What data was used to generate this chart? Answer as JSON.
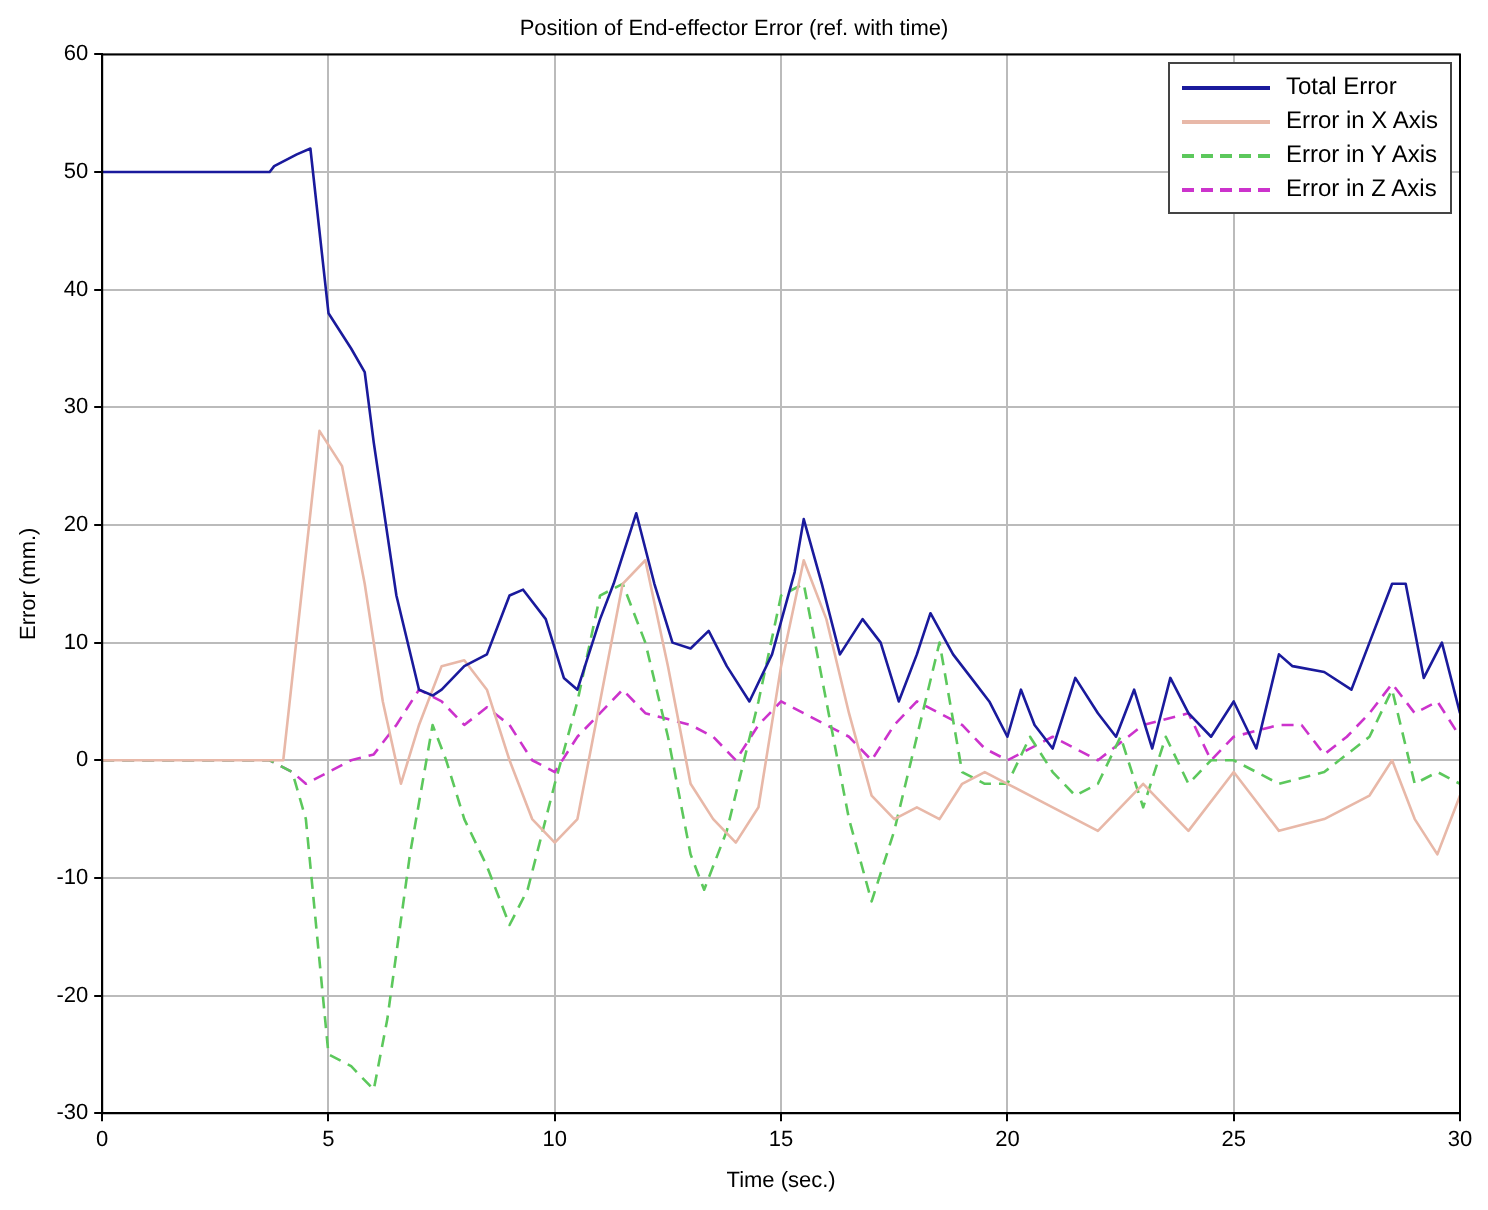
{
  "chart_data": {
    "type": "line",
    "title": "Position of End-effector Error (ref. with time)",
    "xlabel": "Time (sec.)",
    "ylabel": "Error (mm.)",
    "xlim": [
      0,
      30
    ],
    "xticks": [
      0,
      5,
      10,
      15,
      20,
      25,
      30
    ],
    "ylim": [
      -30,
      60
    ],
    "yticks": [
      -30,
      -20,
      -10,
      0,
      10,
      20,
      30,
      40,
      50,
      60
    ],
    "grid": true,
    "legend": "top right",
    "marker": "none",
    "series": [
      {
        "name": "Total Error",
        "color": "#1a1a9c",
        "line_style": "solid",
        "x": [
          0,
          3.7,
          3.8,
          4.3,
          4.6,
          5,
          5.5,
          5.8,
          6,
          6.5,
          7,
          7.3,
          7.5,
          8,
          8.5,
          9,
          9.3,
          9.8,
          10.2,
          10.5,
          11,
          11.3,
          11.8,
          12.2,
          12.6,
          13,
          13.4,
          13.8,
          14.3,
          14.8,
          15.3,
          15.5,
          15.9,
          16.3,
          16.8,
          17.2,
          17.6,
          18,
          18.3,
          18.8,
          19.2,
          19.6,
          20,
          20.3,
          20.6,
          21,
          21.5,
          22,
          22.4,
          22.8,
          23.2,
          23.6,
          24,
          24.5,
          25,
          25.5,
          26,
          26.3,
          27,
          27.6,
          28,
          28.5,
          28.8,
          29.2,
          29.6,
          30
        ],
        "values": [
          50,
          50,
          50.5,
          51.5,
          52,
          38,
          35,
          33,
          27,
          14,
          6,
          5.5,
          6,
          8,
          9,
          14,
          14.5,
          12,
          7,
          6,
          12,
          15,
          21,
          15,
          10,
          9.5,
          11,
          8,
          5,
          9,
          16,
          20.5,
          15,
          9,
          12,
          10,
          5,
          9,
          12.5,
          9,
          7,
          5,
          2,
          6,
          3,
          1,
          7,
          4,
          2,
          6,
          1,
          7,
          4,
          2,
          5,
          1,
          9,
          8,
          7.5,
          6,
          10,
          15,
          15,
          7,
          10,
          4
        ]
      },
      {
        "name": "Error in X Axis",
        "color": "#e8b8a8",
        "line_style": "solid",
        "x": [
          0,
          3.7,
          4,
          4.8,
          5.3,
          5.8,
          6.2,
          6.6,
          7,
          7.5,
          8,
          8.5,
          9,
          9.5,
          10,
          10.5,
          11,
          11.5,
          12,
          12.5,
          13,
          13.5,
          14,
          14.5,
          15,
          15.5,
          16,
          16.5,
          17,
          17.5,
          18,
          18.5,
          19,
          19.5,
          20,
          21,
          22,
          23,
          24,
          25,
          26,
          27,
          28,
          28.5,
          29,
          29.5,
          30
        ],
        "values": [
          0,
          0,
          0,
          28,
          25,
          15,
          5,
          -2,
          3,
          8,
          8.5,
          6,
          0,
          -5,
          -7,
          -5,
          5,
          15,
          17,
          8,
          -2,
          -5,
          -7,
          -4,
          8,
          17,
          12,
          4,
          -3,
          -5,
          -4,
          -5,
          -2,
          -1,
          -2,
          -4,
          -6,
          -2,
          -6,
          -1,
          -6,
          -5,
          -3,
          0,
          -5,
          -8,
          -3
        ]
      },
      {
        "name": "Error in Y Axis",
        "color": "#5cc85c",
        "line_style": "dashed",
        "x": [
          0,
          3.7,
          4.2,
          4.5,
          5,
          5.5,
          6,
          6.3,
          6.8,
          7.3,
          7.6,
          8,
          8.5,
          9,
          9.4,
          10,
          10.5,
          11,
          11.5,
          12,
          12.5,
          13,
          13.3,
          13.8,
          14.5,
          15,
          15.5,
          16,
          16.5,
          17,
          17.5,
          18,
          18.5,
          19,
          19.5,
          20,
          20.5,
          21,
          21.5,
          22,
          22.5,
          23,
          23.5,
          24,
          24.5,
          25,
          26,
          27,
          28,
          28.5,
          29,
          29.5,
          30
        ],
        "values": [
          0,
          0,
          -1,
          -5,
          -25,
          -26,
          -28,
          -22,
          -8,
          3,
          0,
          -5,
          -9,
          -14,
          -11,
          -2,
          5,
          14,
          15,
          10,
          2,
          -8,
          -11,
          -6,
          5,
          14,
          15,
          5,
          -5,
          -12,
          -6,
          2,
          10,
          -1,
          -2,
          -2,
          2,
          -1,
          -3,
          -2,
          2,
          -4,
          2,
          -2,
          0,
          0,
          -2,
          -1,
          2,
          6,
          -2,
          -1,
          -2
        ]
      },
      {
        "name": "Error in Z Axis",
        "color": "#cc33cc",
        "line_style": "dashed",
        "x": [
          0,
          3.7,
          4.2,
          4.5,
          5,
          5.5,
          6,
          6.5,
          7,
          7.5,
          8,
          8.5,
          9,
          9.5,
          10,
          10.5,
          11,
          11.5,
          12,
          12.5,
          13,
          13.5,
          14,
          14.5,
          15,
          15.5,
          16,
          16.5,
          17,
          17.5,
          18,
          18.5,
          19,
          19.5,
          20,
          21,
          22,
          23,
          24,
          24.5,
          25,
          26,
          26.5,
          27,
          27.5,
          28,
          28.5,
          29,
          29.5,
          30
        ],
        "values": [
          0,
          0,
          -1,
          -2,
          -1,
          0,
          0.5,
          3,
          6,
          5,
          3,
          4.5,
          3,
          0,
          -1,
          2,
          4,
          6,
          4,
          3.5,
          3,
          2,
          0,
          3,
          5,
          4,
          3,
          2,
          0,
          3,
          5,
          4,
          3,
          1,
          0,
          2,
          0,
          3,
          4,
          0,
          2,
          3,
          3,
          0.5,
          2,
          4,
          6.5,
          4,
          5,
          2
        ]
      }
    ]
  }
}
